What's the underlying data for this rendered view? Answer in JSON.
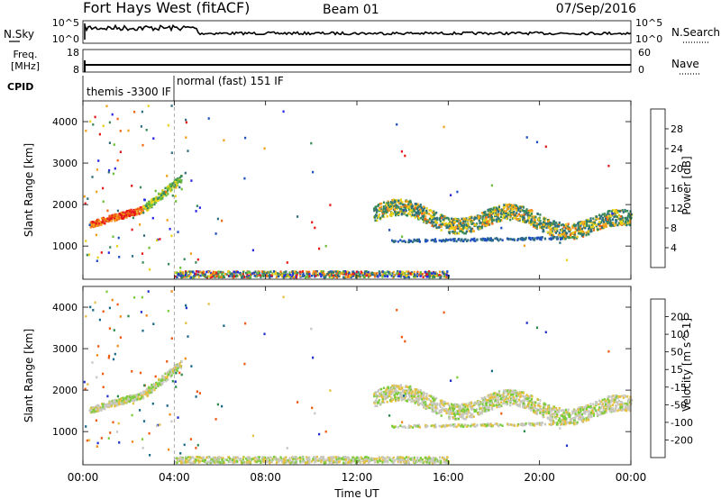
{
  "header": {
    "title": "Fort Hays West (fitACF)",
    "beam": "Beam 01",
    "date": "07/Sep/2016"
  },
  "top_panels": {
    "nsky_label": "N.Sky",
    "nsearch_label": "N.Search",
    "nsky_ticks": [
      "10^5",
      "10^0"
    ],
    "nsearch_ticks": [
      "10^5",
      "10^0"
    ],
    "freq_label": "Freq.",
    "freq_unit": "[MHz]",
    "freq_ticks": [
      "18",
      "8"
    ],
    "nave_label": "Nave",
    "nave_ticks": [
      "60",
      "0"
    ],
    "cpid_label": "CPID",
    "cpid_segments": [
      "themis -3300 IF",
      "normal (fast) 151 IF"
    ]
  },
  "colors": {
    "power": [
      "#2a2ae6",
      "#1f4fc0",
      "#2f6f7f",
      "#3a8a5a",
      "#6bbf3a",
      "#e8d21a",
      "#f2a21a",
      "#f06a12",
      "#e61a1a"
    ],
    "velocity": [
      "#2233cc",
      "#1a6a8a",
      "#2a8a4a",
      "#7acc3a",
      "#c8c8c0",
      "#e6c040",
      "#f08a1a",
      "#f05a12",
      "#e61a1a"
    ]
  },
  "chart_data": [
    {
      "type": "heatmap",
      "name": "power",
      "ylabel": "Slant Range [km]",
      "yticks": [
        "1000",
        "2000",
        "3000",
        "4000"
      ],
      "ylim": [
        200,
        4500
      ],
      "xlim": [
        "00:00",
        "24:00"
      ],
      "colorbar_label": "Power [dB]",
      "colorbar_ticks": [
        "4",
        "8",
        "12",
        "16",
        "20",
        "24",
        "28"
      ],
      "colorbar_range": [
        0,
        32
      ]
    },
    {
      "type": "heatmap",
      "name": "velocity",
      "ylabel": "Slant Range [km]",
      "yticks": [
        "1000",
        "2000",
        "3000",
        "4000"
      ],
      "ylim": [
        200,
        4500
      ],
      "xlim": [
        "00:00",
        "24:00"
      ],
      "colorbar_label": "Velocity [m s^-1]",
      "colorbar_ticks": [
        "200",
        "100",
        "50",
        "15",
        "-15",
        "-50",
        "-100",
        "-200"
      ]
    }
  ],
  "x_axis": {
    "ticks": [
      "00:00",
      "04:00",
      "08:00",
      "12:00",
      "16:00",
      "20:00",
      "00:00"
    ],
    "label": "Time UT"
  }
}
